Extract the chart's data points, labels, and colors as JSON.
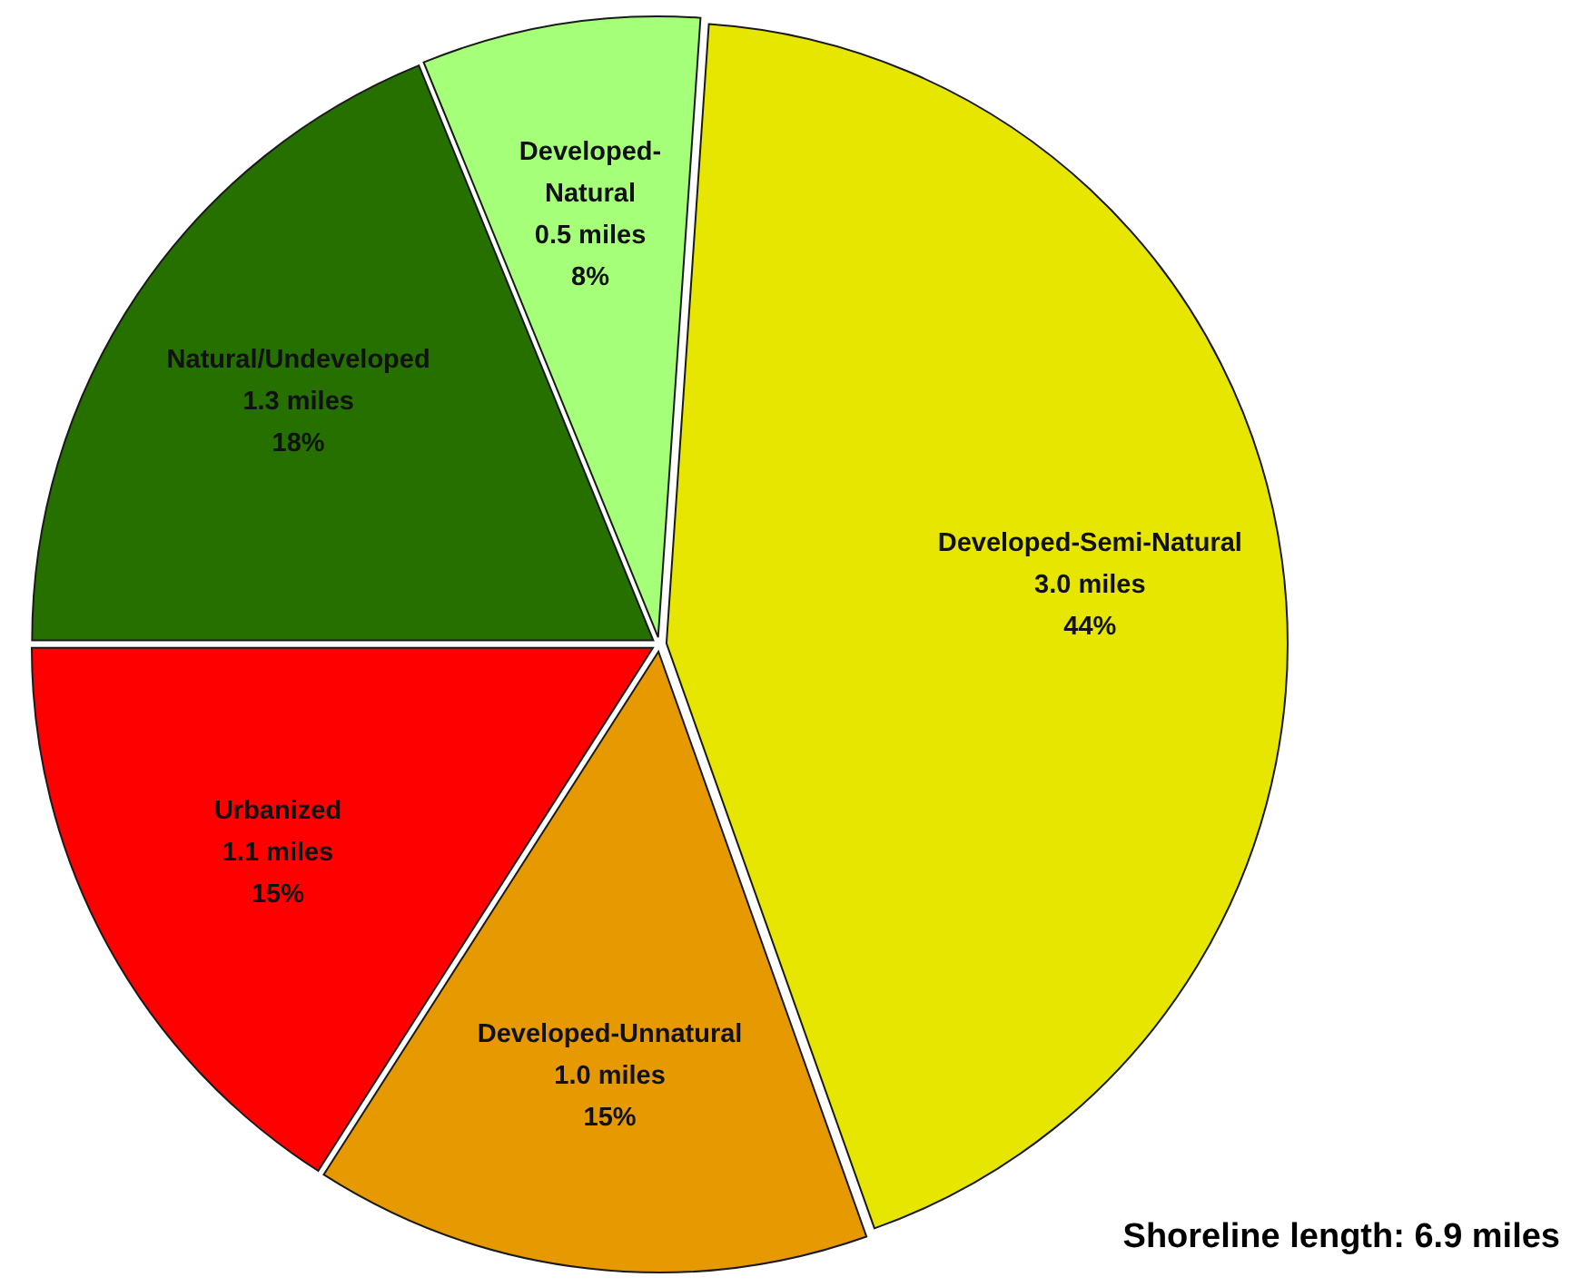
{
  "chart_data": {
    "type": "pie",
    "categories": [
      "Natural/Undeveloped",
      "Developed-Natural",
      "Developed-Semi-Natural",
      "Developed-Unnatural",
      "Urbanized"
    ],
    "values": [
      1.3,
      0.5,
      3.0,
      1.0,
      1.1
    ],
    "value_labels": [
      "1.3 miles\n18%",
      "0.5 miles\n8%",
      "3.0 miles\n44%",
      "1.0 miles\n15%",
      "1.1 miles\n15%"
    ],
    "colors": [
      "#267000",
      "#a6ff78",
      "#e6e600",
      "#e69900",
      "#ff0000"
    ],
    "annotations": [
      "Shoreline length: 6.9 miles"
    ],
    "legend": false
  }
}
